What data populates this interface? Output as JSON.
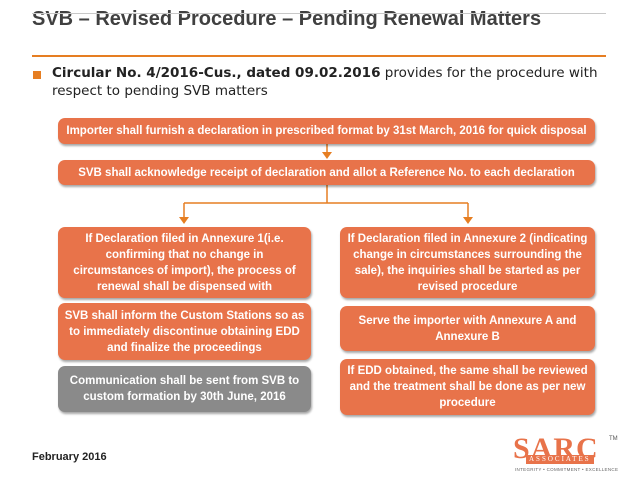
{
  "slide": {
    "title": "SVB – Revised Procedure – Pending Renewal Matters",
    "bullet": {
      "bold_part": "Circular No. 4/2016-Cus., dated 09.02.2016",
      "rest": " provides for the procedure with respect to pending SVB matters"
    },
    "footer": "February 2016"
  },
  "flow": {
    "top_box": "Importer shall furnish a declaration in prescribed format by 31st March, 2016 for quick disposal",
    "second_box": "SVB shall acknowledge receipt of declaration and allot a Reference No. to each declaration",
    "left_branch": [
      "If Declaration filed in Annexure 1(i.e. confirming that no change in circumstances of import), the process of renewal shall be dispensed with",
      "SVB shall inform the Custom Stations so as to immediately discontinue obtaining EDD and finalize the proceedings",
      "Communication shall be sent from SVB to custom formation by 30th June, 2016"
    ],
    "right_branch": [
      "If Declaration filed in Annexure 2 (indicating change in circumstances surrounding the sale), the inquiries shall be started as per revised procedure",
      "Serve the importer with Annexure A and Annexure B",
      "If EDD obtained, the same shall be reviewed and the treatment shall be done as per new procedure"
    ]
  },
  "logo": {
    "name": "SARC",
    "trademark": "TM",
    "sub": "ASSOCIATES",
    "tagline": "INTEGRITY • COMMITMENT • EXCELLENCE"
  },
  "colors": {
    "accent": "#e67e22",
    "box_orange": "#e8734a",
    "box_gray": "#8a8a8a",
    "title": "#404040"
  }
}
